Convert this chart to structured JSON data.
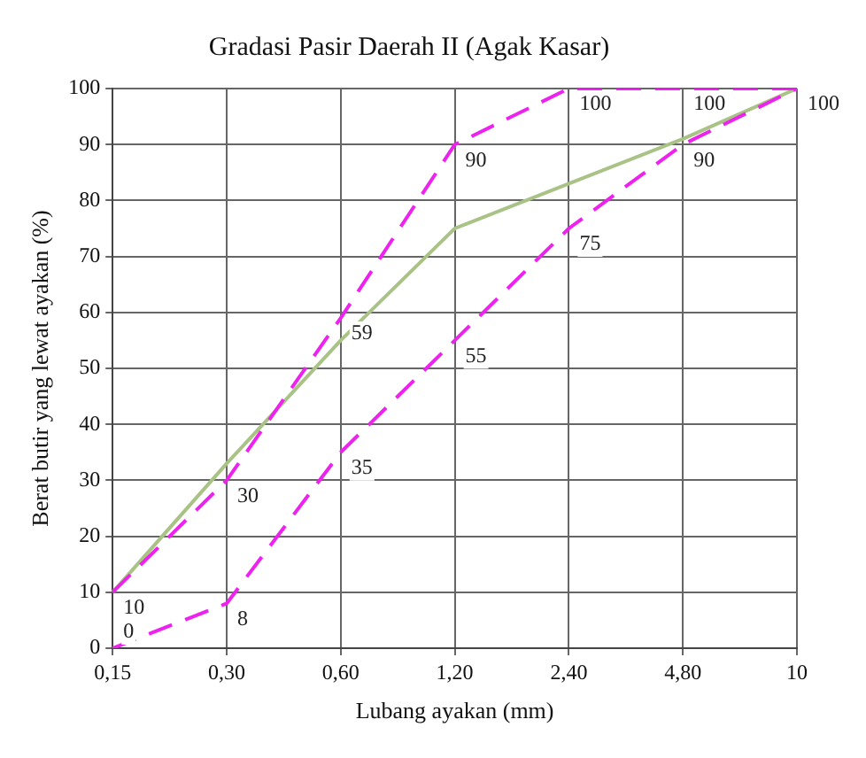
{
  "chart_data": {
    "type": "line",
    "title": "Gradasi Pasir Daerah II (Agak Kasar)",
    "xlabel": "Lubang ayakan (mm)",
    "ylabel": "Berat butir yang lewat ayakan (%)",
    "categories": [
      "0,15",
      "0,30",
      "0,60",
      "1,20",
      "2,40",
      "4,80",
      "10"
    ],
    "series": [
      {
        "color": "#ee22ee",
        "line_style": "dashed",
        "values": [
          10,
          30,
          59,
          90,
          100,
          100,
          100
        ],
        "value_labels": [
          "10",
          "30",
          "59",
          "90",
          "100",
          "100",
          "100"
        ]
      },
      {
        "color": "#ee22ee",
        "line_style": "dashed",
        "values": [
          0,
          8,
          35,
          55,
          75,
          90,
          100
        ],
        "value_labels": [
          "0",
          "8",
          "35",
          "55",
          "75",
          "90",
          null
        ]
      },
      {
        "color": "#a9c285",
        "line_style": "solid",
        "values": [
          10,
          33,
          55,
          75,
          83,
          91,
          100
        ]
      }
    ],
    "ylim": [
      0,
      100
    ],
    "yticks": [
      0,
      10,
      20,
      30,
      40,
      50,
      60,
      70,
      80,
      90,
      100
    ],
    "grid": true,
    "legend": false,
    "marker": "none"
  }
}
